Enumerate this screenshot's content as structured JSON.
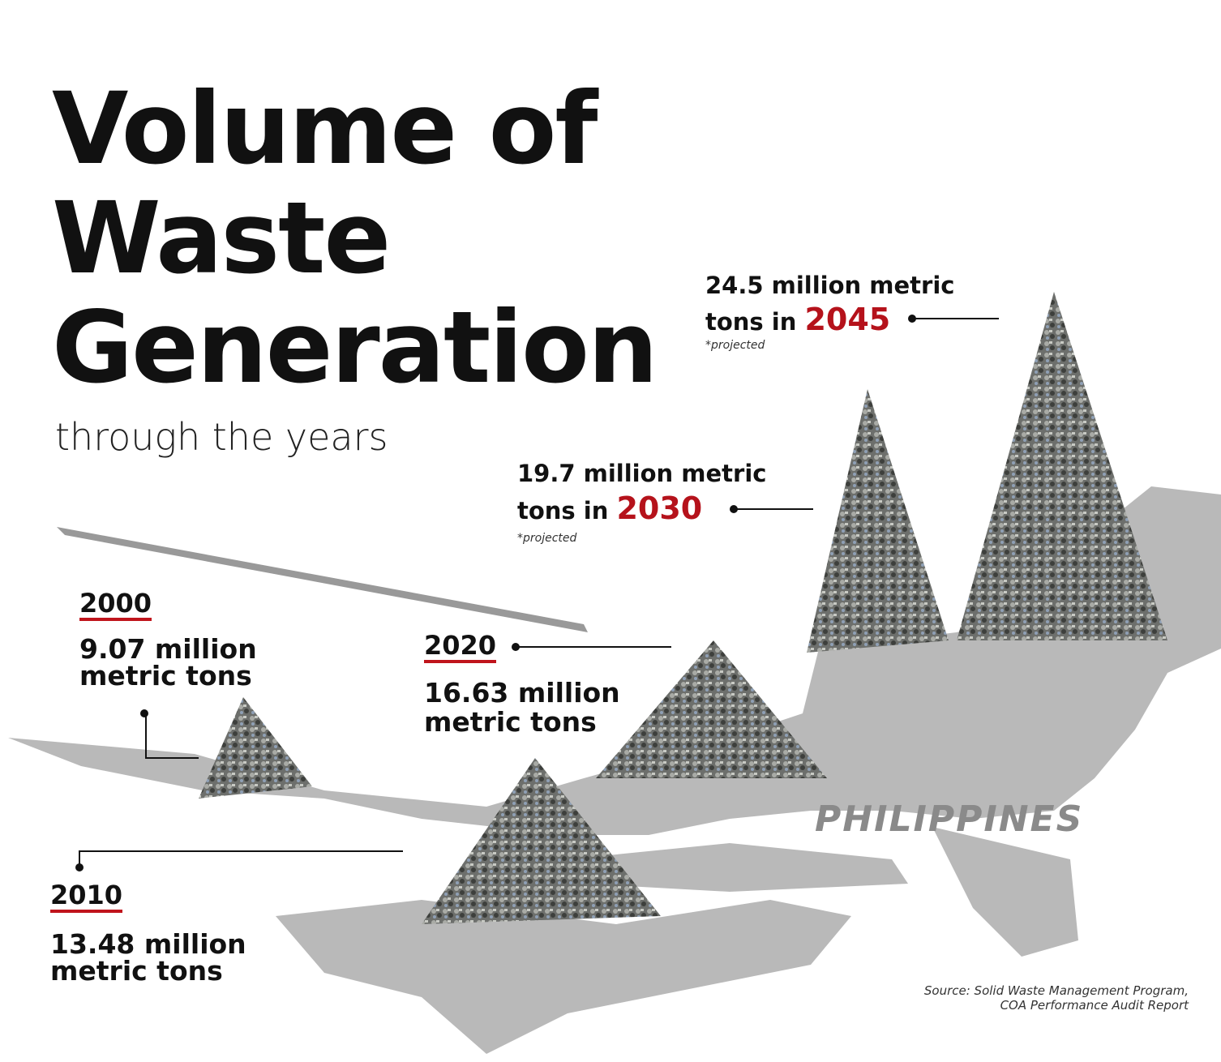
{
  "title": {
    "lines": [
      "Volume of",
      "Waste",
      "Generation"
    ],
    "subtitle": "through the years"
  },
  "milestones": [
    {
      "year": "2000",
      "amount": "9.07 million",
      "unit": "metric tons"
    },
    {
      "year": "2010",
      "amount": "13.48 million",
      "unit": "metric tons"
    },
    {
      "year": "2020",
      "amount": "16.63 million",
      "unit": "metric tons"
    }
  ],
  "projections": [
    {
      "line1": "19.7 million metric",
      "line2": "tons in",
      "year": "2030",
      "note": "*projected"
    },
    {
      "line1": "24.5 million metric",
      "line2": "tons in",
      "year": "2045",
      "note": "*projected"
    }
  ],
  "map_label": "PHILIPPINES",
  "source": [
    "Source: Solid Waste Management Program,",
    "COA Performance Audit Report"
  ]
}
